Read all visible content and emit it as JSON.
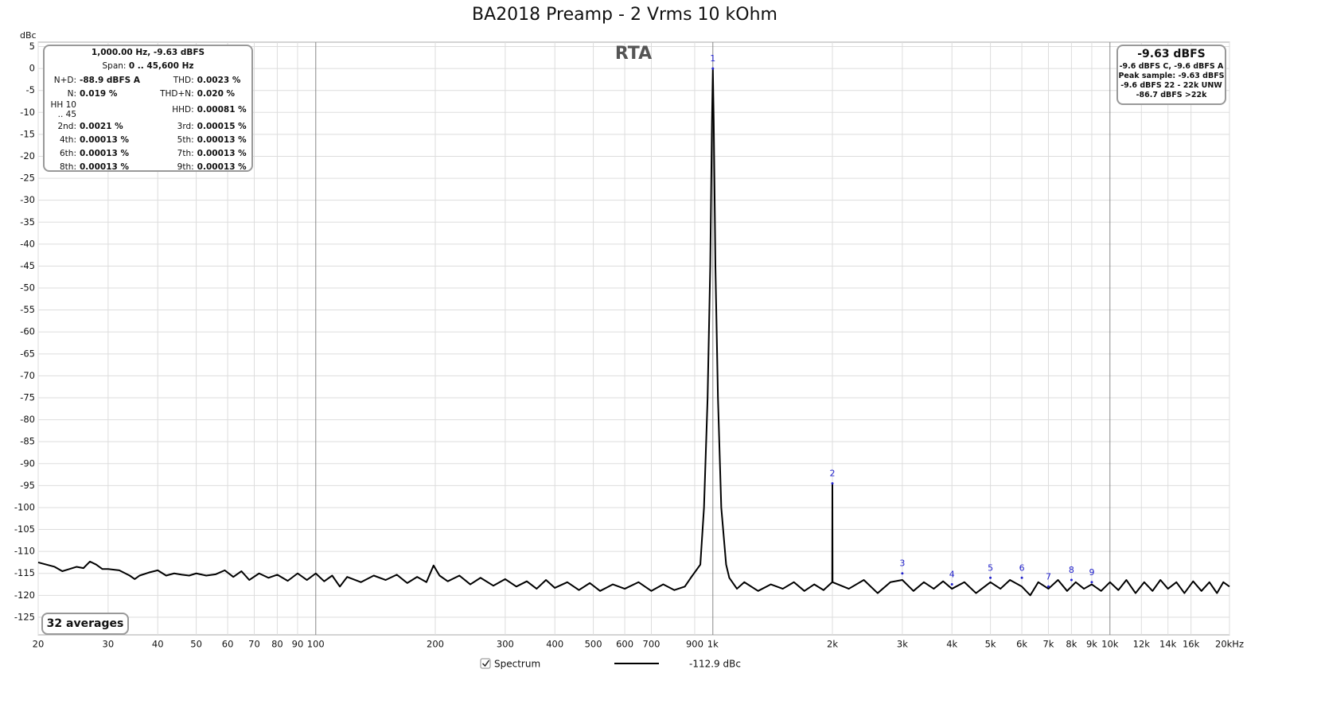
{
  "chart_data": {
    "type": "line",
    "title": "BA2018 Preamp - 2 Vrms 10 kOhm",
    "y_label": "dBc",
    "overlay_label": "RTA",
    "averages": "32 averages",
    "log_x": true,
    "grid": true,
    "xlim": [
      20,
      20000
    ],
    "ylim": [
      -129,
      6
    ],
    "xticks": [
      20,
      30,
      40,
      50,
      60,
      70,
      80,
      90,
      100,
      200,
      300,
      400,
      500,
      600,
      700,
      900,
      {
        "value": 1000,
        "label": "1k"
      },
      {
        "value": 2000,
        "label": "2k"
      },
      {
        "value": 3000,
        "label": "3k"
      },
      {
        "value": 4000,
        "label": "4k"
      },
      {
        "value": 5000,
        "label": "5k"
      },
      {
        "value": 6000,
        "label": "6k"
      },
      {
        "value": 7000,
        "label": "7k"
      },
      {
        "value": 8000,
        "label": "8k"
      },
      {
        "value": 9000,
        "label": "9k"
      },
      {
        "value": 10000,
        "label": "10k"
      },
      {
        "value": 12000,
        "label": "12k"
      },
      {
        "value": 14000,
        "label": "14k"
      },
      {
        "value": 16000,
        "label": "16k"
      },
      {
        "value": 20000,
        "label": "20kHz"
      }
    ],
    "yticks": [
      5,
      0,
      -5,
      -10,
      -15,
      -20,
      -25,
      -30,
      -35,
      -40,
      -45,
      -50,
      -55,
      -60,
      -65,
      -70,
      -75,
      -80,
      -85,
      -90,
      -95,
      -100,
      -105,
      -110,
      -115,
      -120,
      -125
    ],
    "x": [
      20,
      22,
      23,
      24,
      25,
      26,
      27,
      28,
      29,
      30,
      32,
      34,
      35,
      36,
      38,
      40,
      42,
      44,
      46,
      48,
      50,
      53,
      56,
      59,
      62,
      65,
      68,
      72,
      76,
      80,
      85,
      90,
      95,
      100,
      105,
      110,
      115,
      120,
      130,
      140,
      150,
      160,
      170,
      180,
      190,
      198,
      205,
      215,
      230,
      245,
      260,
      280,
      300,
      320,
      340,
      360,
      380,
      400,
      430,
      460,
      490,
      520,
      560,
      600,
      650,
      700,
      750,
      800,
      850,
      880,
      930,
      950,
      970,
      985,
      995,
      1000,
      1005,
      1015,
      1030,
      1050,
      1080,
      1100,
      1150,
      1200,
      1300,
      1400,
      1500,
      1600,
      1700,
      1800,
      1900,
      1998,
      2000,
      2002,
      2200,
      2400,
      2600,
      2800,
      3000,
      3200,
      3400,
      3600,
      3800,
      4000,
      4300,
      4600,
      5000,
      5300,
      5600,
      6000,
      6300,
      6600,
      7000,
      7400,
      7800,
      8200,
      8600,
      9000,
      9500,
      10000,
      10500,
      11000,
      11600,
      12200,
      12800,
      13400,
      14000,
      14700,
      15400,
      16200,
      17000,
      17800,
      18600,
      19300,
      20000
    ],
    "series": [
      {
        "name": "Spectrum",
        "color": "#000000",
        "legend_value": "-112.9 dBc",
        "values": [
          -112.5,
          -113.5,
          -114.5,
          -114,
          -113.5,
          -113.8,
          -112.3,
          -113,
          -114,
          -114,
          -114.3,
          -115.5,
          -116.3,
          -115.5,
          -114.8,
          -114.3,
          -115.5,
          -115,
          -115.3,
          -115.5,
          -115,
          -115.5,
          -115.2,
          -114.3,
          -115.8,
          -114.5,
          -116.5,
          -115,
          -116,
          -115.3,
          -116.7,
          -115,
          -116.5,
          -115,
          -116.8,
          -115.5,
          -118,
          -115.8,
          -117,
          -115.5,
          -116.5,
          -115.3,
          -117.2,
          -115.8,
          -117,
          -113.2,
          -115.5,
          -116.8,
          -115.5,
          -117.5,
          -116,
          -117.8,
          -116.3,
          -118,
          -116.8,
          -118.5,
          -116.5,
          -118.3,
          -117,
          -118.8,
          -117.2,
          -119,
          -117.5,
          -118.5,
          -117,
          -119,
          -117.5,
          -118.8,
          -118,
          -116,
          -113,
          -100,
          -75,
          -45,
          -12,
          -0.3,
          -12,
          -45,
          -75,
          -100,
          -113,
          -116,
          -118.5,
          -117,
          -119,
          -117.5,
          -118.5,
          -117,
          -119,
          -117.5,
          -118.8,
          -117,
          -94.5,
          -117,
          -118.5,
          -116.5,
          -119.5,
          -117,
          -116.5,
          -119,
          -117,
          -118.5,
          -116.8,
          -118.5,
          -117,
          -119.5,
          -117,
          -118.5,
          -116.5,
          -118,
          -120,
          -117,
          -118.5,
          -116.5,
          -119,
          -117,
          -118.5,
          -117.5,
          -119,
          -117,
          -118.8,
          -116.5,
          -119.5,
          -117,
          -119,
          -116.5,
          -118.5,
          -117,
          -119.5,
          -116.8,
          -119,
          -117,
          -119.5,
          -117,
          -118
        ]
      }
    ],
    "harmonic_markers": [
      {
        "label": "1",
        "x": 1000,
        "y": 0
      },
      {
        "label": "2",
        "x": 2000,
        "y": -94.5
      },
      {
        "label": "3",
        "x": 3000,
        "y": -115
      },
      {
        "label": "4",
        "x": 4000,
        "y": -117.5
      },
      {
        "label": "5",
        "x": 5000,
        "y": -116
      },
      {
        "label": "6",
        "x": 6000,
        "y": -116
      },
      {
        "label": "7",
        "x": 7000,
        "y": -118
      },
      {
        "label": "8",
        "x": 8000,
        "y": -116.5
      },
      {
        "label": "9",
        "x": 9000,
        "y": -117
      }
    ],
    "readout": {
      "header": "1,000.00 Hz, -9.63 dBFS",
      "span_label": "Span:",
      "span_value": "0 .. 45,600 Hz",
      "rows": [
        [
          {
            "label": "N+D:",
            "value": "-88.9 dBFS A"
          },
          {
            "label": "THD:",
            "value": "0.0023 %"
          }
        ],
        [
          {
            "label": "N:",
            "value": "0.019 %"
          },
          {
            "label": "THD+N:",
            "value": "0.020 %"
          }
        ],
        [
          {
            "label": "HH 10 .. 45"
          },
          {
            "label": "HHD:",
            "value": "0.00081 %"
          }
        ],
        [
          {
            "label": "2nd:",
            "value": "0.0021 %"
          },
          {
            "label": "3rd:",
            "value": "0.00015 %"
          }
        ],
        [
          {
            "label": "4th:",
            "value": "0.00013 %"
          },
          {
            "label": "5th:",
            "value": "0.00013 %"
          }
        ],
        [
          {
            "label": "6th:",
            "value": "0.00013 %"
          },
          {
            "label": "7th:",
            "value": "0.00013 %"
          }
        ],
        [
          {
            "label": "8th:",
            "value": "0.00013 %"
          },
          {
            "label": "9th:",
            "value": "0.00013 %"
          }
        ]
      ]
    },
    "level": {
      "main": "-9.63 dBFS",
      "lines": [
        "-9.6 dBFS C, -9.6 dBFS A",
        "Peak sample: -9.63 dBFS",
        "-9.6 dBFS 22 - 22k UNW",
        "-86.7 dBFS >22k"
      ]
    }
  }
}
